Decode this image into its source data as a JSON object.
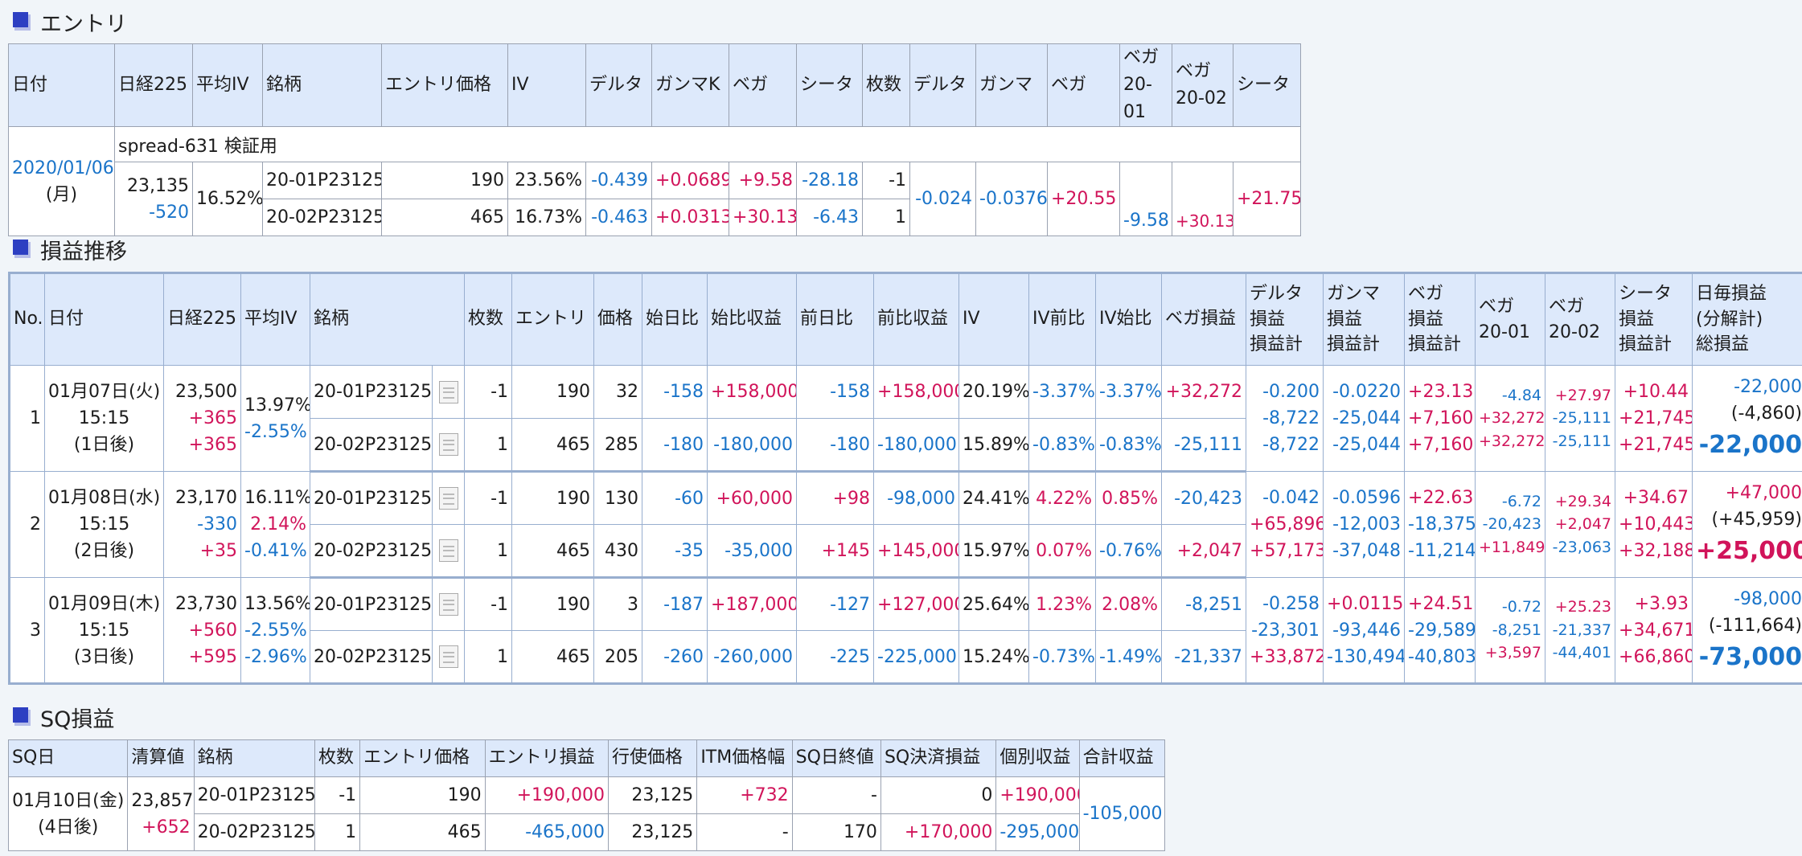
{
  "entry": {
    "title": "エントリ",
    "headers": [
      "日付",
      "日経225",
      "平均IV",
      "銘柄",
      "エントリ価格",
      "IV",
      "デルタ",
      "ガンマK",
      "ベガ",
      "シータ",
      "枚数",
      "デルタ",
      "ガンマ",
      "ベガ",
      "ベガ\n20-01",
      "ベガ\n20-02",
      "シータ"
    ],
    "note": "spread-631 検証用",
    "date": "2020/01/06",
    "weekday": "(月)",
    "nikkei": "23,135",
    "nikkei_chg": "-520",
    "avg_iv": "16.52%",
    "rows": [
      {
        "symbol": "20-01P23125",
        "price": "190",
        "iv": "23.56%",
        "delta": "-0.439",
        "gamma": "+0.0689",
        "vega": "+9.58",
        "theta": "-28.18",
        "qty": "-1",
        "vega_a": "-9.58"
      },
      {
        "symbol": "20-02P23125",
        "price": "465",
        "iv": "16.73%",
        "delta": "-0.463",
        "gamma": "+0.0313",
        "vega": "+30.13",
        "theta": "-6.43",
        "qty": "1",
        "vega_b": "+30.13"
      }
    ],
    "total_delta": "-0.024",
    "total_gamma": "-0.0376",
    "total_vega": "+20.55",
    "total_theta": "+21.75"
  },
  "pnl": {
    "title": "損益推移",
    "headers": [
      "No.",
      "日付",
      "日経225",
      "平均IV",
      "銘柄",
      "枚数",
      "エントリ",
      "価格",
      "始日比",
      "始比収益",
      "前日比",
      "前比収益",
      "IV",
      "IV前比",
      "IV始比",
      "ベガ損益",
      "デルタ\n損益\n損益計",
      "ガンマ\n損益\n損益計",
      "ベガ\n損益\n損益計",
      "ベガ\n20-01",
      "ベガ\n20-02",
      "シータ\n損益\n損益計",
      "日毎損益\n(分解計)\n総損益"
    ],
    "days": [
      {
        "no": "1",
        "date": "01月07日(火)",
        "time": "15:15",
        "elapsed": "(1日後)",
        "nikkei": "23,500",
        "nikkei_d1": "+365",
        "nikkei_d2": "+365",
        "iv": "13.97%",
        "iv_d1": "",
        "iv_d2": "-2.55%",
        "legs": [
          {
            "symbol": "20-01P23125",
            "qty": "-1",
            "entry": "190",
            "price": "32",
            "start_diff": "-158",
            "start_pnl": "+158,000",
            "prev_diff": "-158",
            "prev_pnl": "+158,000",
            "iv": "20.19%",
            "iv_prev": "-3.37%",
            "iv_start": "-3.37%",
            "vega_pnl": "+32,272"
          },
          {
            "symbol": "20-02P23125",
            "qty": "1",
            "entry": "465",
            "price": "285",
            "start_diff": "-180",
            "start_pnl": "-180,000",
            "prev_diff": "-180",
            "prev_pnl": "-180,000",
            "iv": "15.89%",
            "iv_prev": "-0.83%",
            "iv_start": "-0.83%",
            "vega_pnl": "-25,111"
          }
        ],
        "delta": [
          "-0.200",
          "-8,722",
          "-8,722"
        ],
        "gamma": [
          "-0.0220",
          "-25,044",
          "-25,044"
        ],
        "vega": [
          "+23.13",
          "+7,160",
          "+7,160"
        ],
        "vega01": [
          "-4.84",
          "+32,272",
          "+32,272"
        ],
        "vega02": [
          "+27.97",
          "-25,111",
          "-25,111"
        ],
        "theta": [
          "+10.44",
          "+21,745",
          "+21,745"
        ],
        "daily": [
          "-22,000",
          "(-4,860)",
          "-22,000"
        ]
      },
      {
        "no": "2",
        "date": "01月08日(水)",
        "time": "15:15",
        "elapsed": "(2日後)",
        "nikkei": "23,170",
        "nikkei_d1": "-330",
        "nikkei_d2": "+35",
        "iv": "16.11%",
        "iv_d1": "2.14%",
        "iv_d2": "-0.41%",
        "legs": [
          {
            "symbol": "20-01P23125",
            "qty": "-1",
            "entry": "190",
            "price": "130",
            "start_diff": "-60",
            "start_pnl": "+60,000",
            "prev_diff": "+98",
            "prev_pnl": "-98,000",
            "iv": "24.41%",
            "iv_prev": "4.22%",
            "iv_start": "0.85%",
            "vega_pnl": "-20,423"
          },
          {
            "symbol": "20-02P23125",
            "qty": "1",
            "entry": "465",
            "price": "430",
            "start_diff": "-35",
            "start_pnl": "-35,000",
            "prev_diff": "+145",
            "prev_pnl": "+145,000",
            "iv": "15.97%",
            "iv_prev": "0.07%",
            "iv_start": "-0.76%",
            "vega_pnl": "+2,047"
          }
        ],
        "delta": [
          "-0.042",
          "+65,896",
          "+57,173"
        ],
        "gamma": [
          "-0.0596",
          "-12,003",
          "-37,048"
        ],
        "vega": [
          "+22.63",
          "-18,375",
          "-11,214"
        ],
        "vega01": [
          "-6.72",
          "-20,423",
          "+11,849"
        ],
        "vega02": [
          "+29.34",
          "+2,047",
          "-23,063"
        ],
        "theta": [
          "+34.67",
          "+10,443",
          "+32,188"
        ],
        "daily": [
          "+47,000",
          "(+45,959)",
          "+25,000"
        ]
      },
      {
        "no": "3",
        "date": "01月09日(木)",
        "time": "15:15",
        "elapsed": "(3日後)",
        "nikkei": "23,730",
        "nikkei_d1": "+560",
        "nikkei_d2": "+595",
        "iv": "13.56%",
        "iv_d1": "-2.55%",
        "iv_d2": "-2.96%",
        "legs": [
          {
            "symbol": "20-01P23125",
            "qty": "-1",
            "entry": "190",
            "price": "3",
            "start_diff": "-187",
            "start_pnl": "+187,000",
            "prev_diff": "-127",
            "prev_pnl": "+127,000",
            "iv": "25.64%",
            "iv_prev": "1.23%",
            "iv_start": "2.08%",
            "vega_pnl": "-8,251"
          },
          {
            "symbol": "20-02P23125",
            "qty": "1",
            "entry": "465",
            "price": "205",
            "start_diff": "-260",
            "start_pnl": "-260,000",
            "prev_diff": "-225",
            "prev_pnl": "-225,000",
            "iv": "15.24%",
            "iv_prev": "-0.73%",
            "iv_start": "-1.49%",
            "vega_pnl": "-21,337"
          }
        ],
        "delta": [
          "-0.258",
          "-23,301",
          "+33,872"
        ],
        "gamma": [
          "+0.0115",
          "-93,446",
          "-130,494"
        ],
        "vega": [
          "+24.51",
          "-29,589",
          "-40,803"
        ],
        "vega01": [
          "-0.72",
          "-8,251",
          "+3,597"
        ],
        "vega02": [
          "+25.23",
          "-21,337",
          "-44,401"
        ],
        "theta": [
          "+3.93",
          "+34,671",
          "+66,860"
        ],
        "daily": [
          "-98,000",
          "(-111,664)",
          "-73,000"
        ]
      }
    ]
  },
  "sq": {
    "title": "SQ損益",
    "headers": [
      "SQ日",
      "清算値",
      "銘柄",
      "枚数",
      "エントリ価格",
      "エントリ損益",
      "行使価格",
      "ITM価格幅",
      "SQ日終値",
      "SQ決済損益",
      "個別収益",
      "合計収益"
    ],
    "date": "01月10日(金)",
    "elapsed": "(4日後)",
    "settle": "23,857",
    "settle_chg": "+652",
    "rows": [
      {
        "symbol": "20-01P23125",
        "qty": "-1",
        "entry": "190",
        "entry_pnl": "+190,000",
        "strike": "23,125",
        "itm": "+732",
        "close": "-",
        "sq_pnl": "0",
        "indiv": "+190,000"
      },
      {
        "symbol": "20-02P23125",
        "qty": "1",
        "entry": "465",
        "entry_pnl": "-465,000",
        "strike": "23,125",
        "itm": "-",
        "close": "170",
        "sq_pnl": "+170,000",
        "indiv": "-295,000"
      }
    ],
    "total": "-105,000"
  },
  "colors": {
    "positive": "#d1145a",
    "negative": "#1a74c9",
    "header_bg": "#dde9fb",
    "icon": "#2d3fc2"
  },
  "icons": {
    "section": "section-square-icon",
    "memo": "document-icon"
  }
}
